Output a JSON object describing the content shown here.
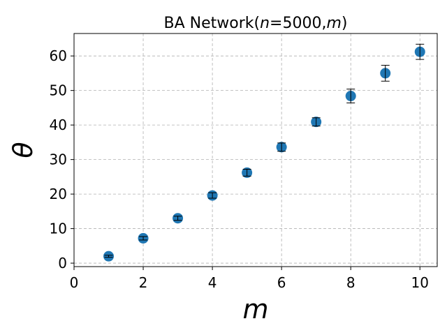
{
  "chart_data": {
    "type": "scatter",
    "title_prefix": "BA Network(",
    "title_n": "n",
    "title_mid": "=5000,",
    "title_m": "m",
    "title_suffix": ")",
    "xlabel": "m",
    "ylabel": "θ",
    "xlim": [
      0,
      10.5
    ],
    "ylim": [
      -1,
      66.5
    ],
    "xticks": [
      0,
      2,
      4,
      6,
      8,
      10
    ],
    "yticks": [
      0,
      10,
      20,
      30,
      40,
      50,
      60
    ],
    "grid": true,
    "marker_color": "#1f77b4",
    "errorbar_color": "#000000",
    "points": [
      {
        "x": 1,
        "y": 2.0,
        "err": 0.3
      },
      {
        "x": 2,
        "y": 7.2,
        "err": 0.5
      },
      {
        "x": 3,
        "y": 13.0,
        "err": 0.6
      },
      {
        "x": 4,
        "y": 19.6,
        "err": 0.8
      },
      {
        "x": 5,
        "y": 26.2,
        "err": 1.0
      },
      {
        "x": 6,
        "y": 33.6,
        "err": 1.2
      },
      {
        "x": 7,
        "y": 40.9,
        "err": 1.2
      },
      {
        "x": 8,
        "y": 48.4,
        "err": 2.0
      },
      {
        "x": 9,
        "y": 55.0,
        "err": 2.3
      },
      {
        "x": 10,
        "y": 61.2,
        "err": 2.2
      }
    ]
  }
}
